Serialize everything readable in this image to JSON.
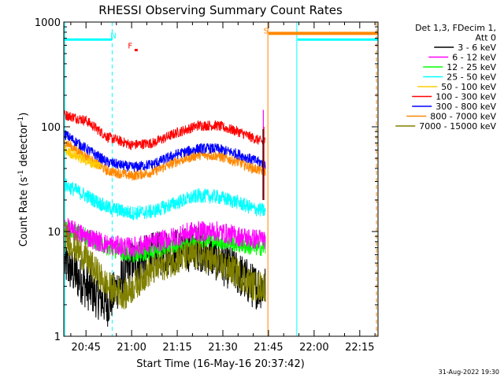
{
  "chart_data": {
    "type": "line",
    "title": "RHESSI Observing Summary Count Rates",
    "xlabel": "Start Time (16-May-16 20:37:42)",
    "ylabel_main": "Count Rate (s",
    "ylabel_sup1": "-1",
    "ylabel_mid": " detector",
    "ylabel_sup2": "-1",
    "ylabel_end": ")",
    "y_scale": "log",
    "ylim": [
      1,
      1000
    ],
    "xlim_minutes": [
      37.7,
      141
    ],
    "x_ticks": [
      {
        "label": "20:45",
        "minutes": 45
      },
      {
        "label": "21:00",
        "minutes": 60
      },
      {
        "label": "21:15",
        "minutes": 75
      },
      {
        "label": "21:30",
        "minutes": 90
      },
      {
        "label": "21:45",
        "minutes": 105
      },
      {
        "label": "22:00",
        "minutes": 120
      },
      {
        "label": "22:15",
        "minutes": 135
      }
    ],
    "y_ticks": [
      {
        "label": "1",
        "value": 1
      },
      {
        "label": "10",
        "value": 10
      },
      {
        "label": "100",
        "value": 100
      },
      {
        "label": "1000",
        "value": 1000
      }
    ],
    "legend": {
      "placement": "right",
      "header": [
        "Det 1,3, FDecim 1,",
        "Att 0"
      ],
      "entries": [
        {
          "name": "3 - 6 keV",
          "color": "#000000"
        },
        {
          "name": "6 - 12 keV",
          "color": "#ff00ff"
        },
        {
          "name": "12 - 25 keV",
          "color": "#00ff00"
        },
        {
          "name": "25 - 50 keV",
          "color": "#00ffff"
        },
        {
          "name": "50 - 100 keV",
          "color": "#ffcc00"
        },
        {
          "name": "100 - 300 keV",
          "color": "#ff0000"
        },
        {
          "name": "300 - 800 keV",
          "color": "#0000ff"
        },
        {
          "name": "800 - 7000 keV",
          "color": "#ff8800"
        },
        {
          "name": "7000 - 15000 keV",
          "color": "#808000"
        }
      ]
    },
    "series": [
      {
        "band": "100 - 300 keV",
        "color": "#ff0000",
        "noise": 0.05,
        "points": [
          [
            38,
            130
          ],
          [
            45,
            115
          ],
          [
            52,
            80
          ],
          [
            60,
            67
          ],
          [
            67,
            70
          ],
          [
            75,
            88
          ],
          [
            82,
            103
          ],
          [
            88,
            103
          ],
          [
            95,
            90
          ],
          [
            100,
            78
          ],
          [
            103,
            72
          ],
          [
            104,
            72
          ]
        ]
      },
      {
        "band": "300 - 800 keV",
        "color": "#0000ff",
        "noise": 0.05,
        "points": [
          [
            38,
            85
          ],
          [
            45,
            62
          ],
          [
            52,
            46
          ],
          [
            60,
            41
          ],
          [
            67,
            44
          ],
          [
            75,
            55
          ],
          [
            82,
            62
          ],
          [
            88,
            62
          ],
          [
            95,
            55
          ],
          [
            100,
            48
          ],
          [
            103,
            45
          ],
          [
            104,
            44
          ]
        ]
      },
      {
        "band": "800 - 7000 keV",
        "color": "#ff8800",
        "noise": 0.05,
        "points": [
          [
            38,
            72
          ],
          [
            45,
            52
          ],
          [
            52,
            38
          ],
          [
            60,
            34
          ],
          [
            67,
            37
          ],
          [
            75,
            47
          ],
          [
            82,
            54
          ],
          [
            88,
            53
          ],
          [
            95,
            46
          ],
          [
            100,
            40
          ],
          [
            103,
            38
          ],
          [
            104,
            37
          ]
        ]
      },
      {
        "band": "50 - 100 keV",
        "color": "#ffcc00",
        "noise": 0.05,
        "points": [
          [
            38,
            60
          ],
          [
            42,
            52
          ],
          [
            46,
            46
          ],
          [
            50,
            42
          ]
        ]
      },
      {
        "band": "25 - 50 keV",
        "color": "#00ffff",
        "noise": 0.07,
        "points": [
          [
            38,
            28
          ],
          [
            45,
            22
          ],
          [
            52,
            17
          ],
          [
            60,
            15
          ],
          [
            67,
            15.5
          ],
          [
            75,
            19
          ],
          [
            82,
            22
          ],
          [
            88,
            21.5
          ],
          [
            95,
            19
          ],
          [
            100,
            16.5
          ],
          [
            103,
            16
          ],
          [
            104,
            15.5
          ]
        ]
      },
      {
        "band": "6 - 12 keV",
        "color": "#ff00ff",
        "noise": 0.1,
        "points": [
          [
            38,
            11
          ],
          [
            45,
            9
          ],
          [
            52,
            7.5
          ],
          [
            60,
            7
          ],
          [
            67,
            7.8
          ],
          [
            75,
            9
          ],
          [
            80,
            10
          ],
          [
            88,
            10
          ],
          [
            95,
            9
          ],
          [
            100,
            8.5
          ],
          [
            104,
            8.5
          ]
        ]
      },
      {
        "band": "12 - 25 keV",
        "color": "#00ff00",
        "noise": 0.08,
        "points": [
          [
            38,
            11
          ],
          [
            45,
            9
          ],
          [
            52,
            7
          ],
          [
            60,
            6
          ],
          [
            67,
            6.4
          ],
          [
            75,
            7.5
          ],
          [
            82,
            8.5
          ],
          [
            88,
            8.2
          ],
          [
            95,
            7.5
          ],
          [
            100,
            7
          ],
          [
            104,
            7
          ]
        ]
      },
      {
        "band": "3 - 6 keV",
        "color": "#000000",
        "noise": 0.22,
        "points": [
          [
            38,
            5
          ],
          [
            45,
            3
          ],
          [
            52,
            2
          ],
          [
            60,
            5
          ],
          [
            67,
            6
          ],
          [
            75,
            6.5
          ],
          [
            82,
            7
          ],
          [
            88,
            5.5
          ],
          [
            95,
            4
          ],
          [
            100,
            3
          ],
          [
            104,
            3
          ]
        ]
      },
      {
        "band": "7000 - 15000 keV",
        "color": "#808000",
        "noise": 0.15,
        "points": [
          [
            38,
            9
          ],
          [
            45,
            5.5
          ],
          [
            52,
            3
          ],
          [
            58,
            2.5
          ],
          [
            65,
            4
          ],
          [
            75,
            5.5
          ],
          [
            82,
            6
          ],
          [
            88,
            5
          ],
          [
            95,
            4
          ],
          [
            100,
            3
          ],
          [
            104,
            3
          ]
        ]
      }
    ],
    "flare_spikes": [
      {
        "color": "#ff00ff",
        "minutes": 103.3,
        "value": 145
      },
      {
        "color": "#000000",
        "minutes": 103.2,
        "value": 95
      },
      {
        "color": "#ff0000",
        "minutes": 103.5,
        "value": 100
      }
    ],
    "annotations": [
      {
        "text": "N",
        "color": "#00ffff",
        "minutes": 54,
        "value": 700
      },
      {
        "text": "F",
        "color": "#ff0000",
        "minutes": 59.5,
        "value": 560
      },
      {
        "text": "S",
        "color": "#ff8800",
        "minutes": 104.2,
        "value": 780
      }
    ],
    "night_bars": [
      {
        "from": 37.7,
        "to": 53.5,
        "value": 680
      },
      {
        "from": 114.5,
        "to": 141,
        "value": 680
      }
    ],
    "saa_bars": [
      {
        "from": 105,
        "to": 141,
        "value": 780
      }
    ],
    "flare_marker": {
      "from": 61,
      "to": 62,
      "value": 540
    },
    "cyan_lines_solid": [
      38,
      114.3
    ],
    "cyan_lines_dashed": [
      53.6
    ],
    "orange_lines_solid": [
      104.8
    ],
    "orange_lines_dashed": [
      140.5
    ],
    "timestamp": "31-Aug-2022 19:30"
  }
}
